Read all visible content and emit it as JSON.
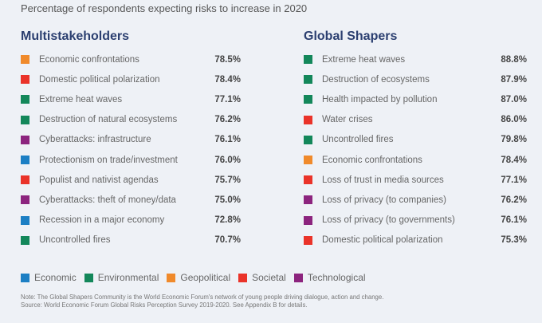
{
  "subtitle": "Percentage of respondents expecting risks to increase in 2020",
  "colors": {
    "Economic": "#1c7fc4",
    "Environmental": "#13875a",
    "Geopolitical": "#f08a2b",
    "Societal": "#ea3329",
    "Technological": "#8c247e"
  },
  "chart_data": {
    "type": "table",
    "title": "Percentage of respondents expecting risks to increase in 2020",
    "panels": [
      {
        "title": "Multistakeholders",
        "rows": [
          {
            "label": "Economic confrontations",
            "category": "Geopolitical",
            "value": 78.5,
            "display": "78.5%"
          },
          {
            "label": "Domestic political polarization",
            "category": "Societal",
            "value": 78.4,
            "display": "78.4%"
          },
          {
            "label": "Extreme heat waves",
            "category": "Environmental",
            "value": 77.1,
            "display": "77.1%"
          },
          {
            "label": "Destruction of natural ecosystems",
            "category": "Environmental",
            "value": 76.2,
            "display": "76.2%"
          },
          {
            "label": "Cyberattacks: infrastructure",
            "category": "Technological",
            "value": 76.1,
            "display": "76.1%"
          },
          {
            "label": "Protectionism on trade/investment",
            "category": "Economic",
            "value": 76.0,
            "display": "76.0%"
          },
          {
            "label": "Populist and nativist agendas",
            "category": "Societal",
            "value": 75.7,
            "display": "75.7%"
          },
          {
            "label": "Cyberattacks: theft of money/data",
            "category": "Technological",
            "value": 75.0,
            "display": "75.0%"
          },
          {
            "label": "Recession in a major economy",
            "category": "Economic",
            "value": 72.8,
            "display": "72.8%"
          },
          {
            "label": "Uncontrolled fires",
            "category": "Environmental",
            "value": 70.7,
            "display": "70.7%"
          }
        ]
      },
      {
        "title": "Global Shapers",
        "rows": [
          {
            "label": "Extreme heat waves",
            "category": "Environmental",
            "value": 88.8,
            "display": "88.8%"
          },
          {
            "label": "Destruction of ecosystems",
            "category": "Environmental",
            "value": 87.9,
            "display": "87.9%"
          },
          {
            "label": "Health impacted by pollution",
            "category": "Environmental",
            "value": 87.0,
            "display": "87.0%"
          },
          {
            "label": "Water crises",
            "category": "Societal",
            "value": 86.0,
            "display": "86.0%"
          },
          {
            "label": "Uncontrolled fires",
            "category": "Environmental",
            "value": 79.8,
            "display": "79.8%"
          },
          {
            "label": "Economic confrontations",
            "category": "Geopolitical",
            "value": 78.4,
            "display": "78.4%"
          },
          {
            "label": "Loss of trust in media sources",
            "category": "Societal",
            "value": 77.1,
            "display": "77.1%"
          },
          {
            "label": "Loss of privacy (to companies)",
            "category": "Technological",
            "value": 76.2,
            "display": "76.2%"
          },
          {
            "label": "Loss of privacy (to governments)",
            "category": "Technological",
            "value": 76.1,
            "display": "76.1%"
          },
          {
            "label": "Domestic political polarization",
            "category": "Societal",
            "value": 75.3,
            "display": "75.3%"
          }
        ]
      }
    ],
    "legend": [
      "Economic",
      "Environmental",
      "Geopolitical",
      "Societal",
      "Technological"
    ],
    "legend_position": "bottom-left"
  },
  "notes": {
    "note": "Note: The Global Shapers Community is the World Economic Forum's network of young people driving dialogue, action and change.",
    "source": "Source: World Economic Forum Global Risks Perception Survey 2019-2020. See Appendix B for details."
  }
}
